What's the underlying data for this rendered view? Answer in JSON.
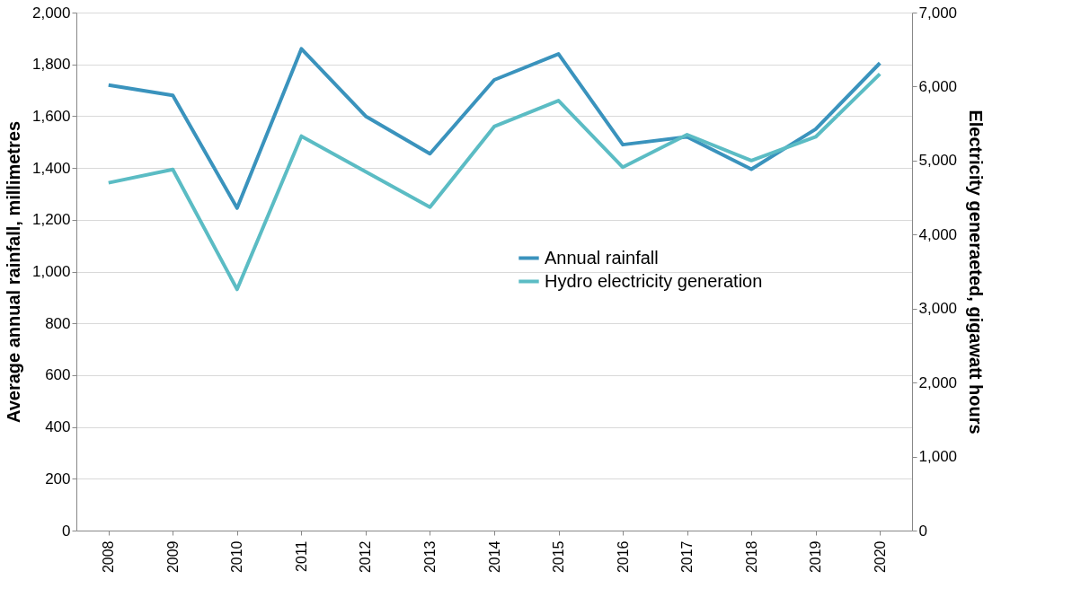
{
  "chart_data": {
    "type": "line",
    "ylabel": "Average annual rainfall, millimetres",
    "y2label": "Electricity generaeted, gigawatt hours",
    "categories": [
      "2008",
      "2009",
      "2010",
      "2011",
      "2012",
      "2013",
      "2014",
      "2015",
      "2016",
      "2017",
      "2018",
      "2019",
      "2020"
    ],
    "series": [
      {
        "name": "Annual rainfall",
        "color": "#3a93bd",
        "values": [
          1720,
          1680,
          1245,
          1860,
          1600,
          1455,
          1740,
          1840,
          1490,
          1520,
          1395,
          1550,
          1805
        ]
      },
      {
        "name": "Hydro electricity generation",
        "color": "#5bbcc4",
        "axis": "y2",
        "values": [
          4700,
          4880,
          3260,
          5330,
          4850,
          4370,
          5460,
          5810,
          4910,
          5350,
          5000,
          5320,
          6170
        ]
      }
    ],
    "ylim": [
      0,
      2000
    ],
    "yticks": [
      0,
      200,
      400,
      600,
      800,
      {
        "value": 1000,
        "label": "1,000"
      },
      {
        "value": 1200,
        "label": "1,200"
      },
      {
        "value": 1400,
        "label": "1,400"
      },
      {
        "value": 1600,
        "label": "1,600"
      },
      {
        "value": 1800,
        "label": "1,800"
      },
      {
        "value": 2000,
        "label": "2,000"
      }
    ],
    "y2lim": [
      0,
      7000
    ],
    "y2ticks": [
      0,
      {
        "value": 1000,
        "label": "1,000"
      },
      {
        "value": 2000,
        "label": "2,000"
      },
      {
        "value": 3000,
        "label": "3,000"
      },
      {
        "value": 4000,
        "label": "4,000"
      },
      {
        "value": 5000,
        "label": "5,000"
      },
      {
        "value": 6000,
        "label": "6,000"
      },
      {
        "value": 7000,
        "label": "7,000"
      }
    ],
    "grid": "y",
    "legend": "right",
    "marker": "none",
    "line_style": "solid"
  }
}
